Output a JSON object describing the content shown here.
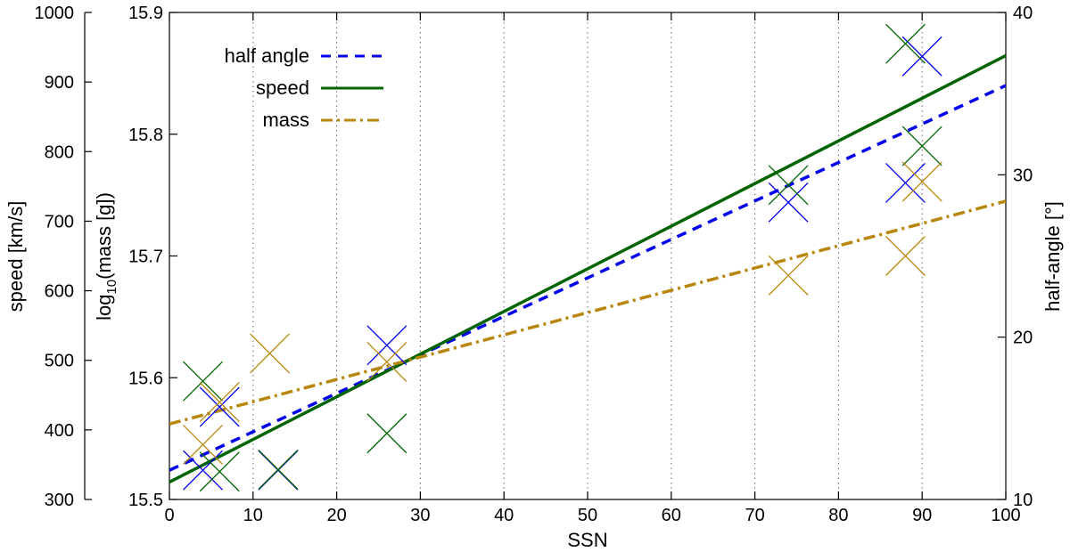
{
  "chart_data": {
    "type": "scatter",
    "xlabel": "SSN",
    "xlim": [
      0,
      100
    ],
    "xticks": [
      "0",
      "10",
      "20",
      "30",
      "40",
      "50",
      "60",
      "70",
      "80",
      "90",
      "100"
    ],
    "x_tick_values": [
      0,
      10,
      20,
      30,
      40,
      50,
      60,
      70,
      80,
      90,
      100
    ],
    "grid": "vertical-dotted",
    "axes": {
      "speed": {
        "label": "speed [km/s]",
        "range": [
          300,
          1000
        ],
        "ticks": [
          "300",
          "400",
          "500",
          "600",
          "700",
          "800",
          "900",
          "1000"
        ],
        "tick_values": [
          300,
          400,
          500,
          600,
          700,
          800,
          900,
          1000
        ]
      },
      "mass": {
        "label_prefix": "log",
        "label_sub": "10",
        "label_suffix": "(mass [g])",
        "range": [
          15.5,
          15.9
        ],
        "ticks": [
          "15.5",
          "15.6",
          "15.7",
          "15.8",
          "15.9"
        ],
        "tick_values": [
          15.5,
          15.6,
          15.7,
          15.8,
          15.9
        ]
      },
      "half_angle": {
        "label": "half-angle [°]",
        "range": [
          10,
          40
        ],
        "ticks": [
          "10",
          "20",
          "30",
          "40"
        ],
        "tick_values": [
          10,
          20,
          30,
          40
        ]
      }
    },
    "legend_position": "top-left",
    "series": [
      {
        "name": "half angle",
        "axis": "half_angle",
        "color": "#0000ee",
        "dash": "dashed",
        "fit": [
          [
            0,
            11.8
          ],
          [
            100,
            35.5
          ]
        ],
        "points": [
          [
            4,
            11.8
          ],
          [
            6,
            15.7
          ],
          [
            13,
            11.8
          ],
          [
            26,
            19.5
          ],
          [
            74,
            28.3
          ],
          [
            88,
            29.5
          ],
          [
            90,
            37.3
          ]
        ]
      },
      {
        "name": "speed",
        "axis": "speed",
        "color": "#006400",
        "dash": "solid",
        "fit": [
          [
            0,
            325
          ],
          [
            100,
            938
          ]
        ],
        "points": [
          [
            4,
            470
          ],
          [
            6,
            340
          ],
          [
            13,
            343
          ],
          [
            26,
            395
          ],
          [
            74,
            752
          ],
          [
            88,
            955
          ],
          [
            90,
            808
          ]
        ]
      },
      {
        "name": "mass",
        "axis": "mass",
        "color": "#b8860b",
        "dash": "dashdot",
        "fit": [
          [
            0,
            15.562
          ],
          [
            100,
            15.745
          ]
        ],
        "points": [
          [
            4,
            15.545
          ],
          [
            6,
            15.58
          ],
          [
            12,
            15.62
          ],
          [
            26,
            15.613
          ],
          [
            74,
            15.684
          ],
          [
            88,
            15.7
          ],
          [
            90,
            15.761
          ]
        ]
      }
    ]
  }
}
